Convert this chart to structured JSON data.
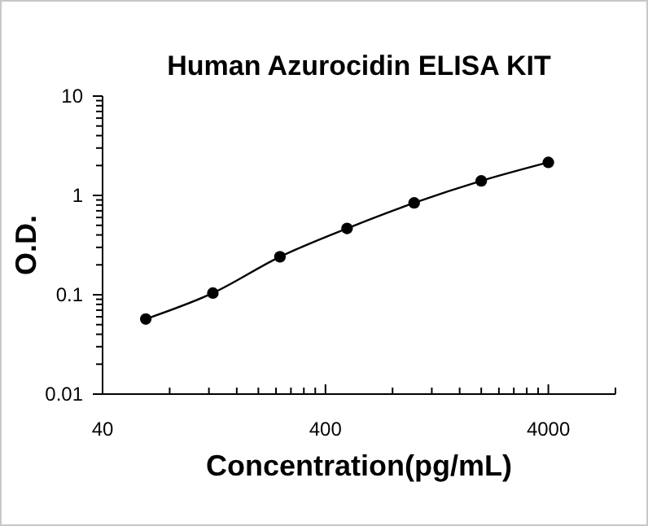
{
  "chart_data": {
    "type": "line",
    "title": "Human Azurocidin ELISA KIT",
    "xlabel": "Concentration(pg/mL)",
    "ylabel": "O.D.",
    "log": "xy",
    "marker": "circle",
    "line_style": "solid",
    "grid": false,
    "x": [
      62.5,
      125,
      250,
      500,
      1000,
      2000,
      4000
    ],
    "series": [
      {
        "color": "#000000",
        "values": [
          0.057,
          0.104,
          0.241,
          0.465,
          0.84,
          1.4,
          2.15
        ]
      }
    ],
    "xlim": [
      40,
      8000
    ],
    "xticks": [
      40,
      {
        "value": 80,
        "label": null
      },
      {
        "value": 120,
        "label": null
      },
      {
        "value": 160,
        "label": null
      },
      {
        "value": 200,
        "label": null
      },
      {
        "value": 240,
        "label": null
      },
      {
        "value": 280,
        "label": null
      },
      {
        "value": 320,
        "label": null
      },
      {
        "value": 360,
        "label": null
      },
      400,
      {
        "value": 800,
        "label": null
      },
      {
        "value": 1200,
        "label": null
      },
      {
        "value": 1600,
        "label": null
      },
      {
        "value": 2000,
        "label": null
      },
      {
        "value": 2400,
        "label": null
      },
      {
        "value": 2800,
        "label": null
      },
      {
        "value": 3200,
        "label": null
      },
      {
        "value": 3600,
        "label": null
      },
      4000,
      {
        "value": 8000,
        "label": null
      }
    ],
    "ylim": [
      0.01,
      10
    ],
    "yticks": [
      0.01,
      {
        "value": 0.02,
        "label": null
      },
      {
        "value": 0.03,
        "label": null
      },
      {
        "value": 0.04,
        "label": null
      },
      {
        "value": 0.05,
        "label": null
      },
      {
        "value": 0.06,
        "label": null
      },
      {
        "value": 0.07,
        "label": null
      },
      {
        "value": 0.08,
        "label": null
      },
      {
        "value": 0.09,
        "label": null
      },
      0.1,
      {
        "value": 0.2,
        "label": null
      },
      {
        "value": 0.3,
        "label": null
      },
      {
        "value": 0.4,
        "label": null
      },
      {
        "value": 0.5,
        "label": null
      },
      {
        "value": 0.6,
        "label": null
      },
      {
        "value": 0.7,
        "label": null
      },
      {
        "value": 0.8,
        "label": null
      },
      {
        "value": 0.9,
        "label": null
      },
      1,
      {
        "value": 2,
        "label": null
      },
      {
        "value": 3,
        "label": null
      },
      {
        "value": 4,
        "label": null
      },
      {
        "value": 5,
        "label": null
      },
      {
        "value": 6,
        "label": null
      },
      {
        "value": 7,
        "label": null
      },
      {
        "value": 8,
        "label": null
      },
      {
        "value": 9,
        "label": null
      },
      10
    ]
  }
}
